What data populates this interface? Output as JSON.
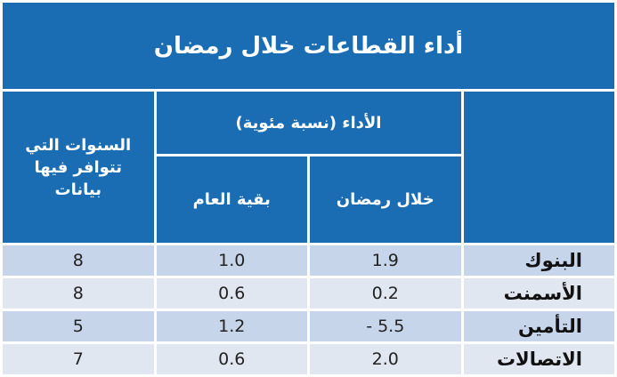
{
  "header": {
    "title": "أداء القطاعات خلال رمضان"
  },
  "table": {
    "columns": {
      "sector": "",
      "performance": "الأداء (نسبة مئوية)",
      "ramadan": "خلال رمضان",
      "rest_of_year": "بقية العام",
      "years": "السنوات التي تتوافر فيها بيانات"
    },
    "rows": [
      [
        "البنوك",
        "1.9",
        "1.0",
        "8"
      ],
      [
        "الأسمنت",
        "0.2",
        "0.6",
        "8"
      ],
      [
        "التأمين",
        "- 5.5",
        "1.2",
        "5"
      ],
      [
        "الاتصالات",
        "2.0",
        "0.6",
        "7"
      ]
    ]
  }
}
